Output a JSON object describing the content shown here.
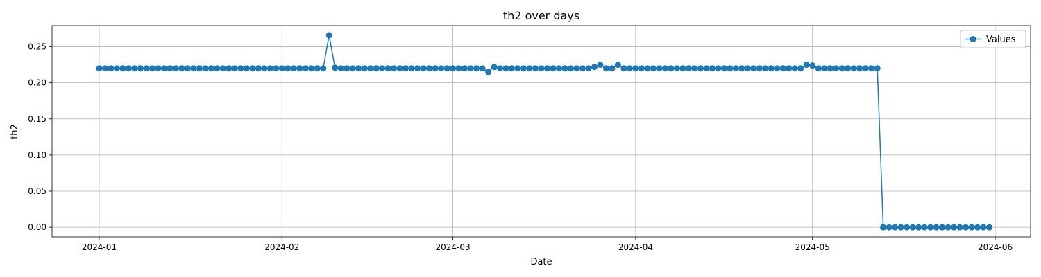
{
  "chart_data": {
    "type": "line",
    "title": "th2 over days",
    "xlabel": "Date",
    "ylabel": "th2",
    "x_start": "2024-01-01",
    "x_step_days": 1,
    "xlim": [
      "2023-12-24",
      "2024-06-07"
    ],
    "ylim": [
      -0.0133,
      0.2793
    ],
    "x_ticks": [
      "2024-01-01",
      "2024-02-01",
      "2024-03-01",
      "2024-04-01",
      "2024-05-01",
      "2024-06-01"
    ],
    "x_tick_labels": [
      "2024-01",
      "2024-02",
      "2024-03",
      "2024-04",
      "2024-05",
      "2024-06"
    ],
    "y_ticks": [
      0.0,
      0.05,
      0.1,
      0.15,
      0.2,
      0.25
    ],
    "y_tick_labels": [
      "0.00",
      "0.05",
      "0.10",
      "0.15",
      "0.20",
      "0.25"
    ],
    "grid": true,
    "legend_position": "top-right",
    "series": [
      {
        "name": "Values",
        "color": "#1f77b4",
        "marker": "circle",
        "values": [
          0.22,
          0.22,
          0.22,
          0.22,
          0.22,
          0.22,
          0.22,
          0.22,
          0.22,
          0.22,
          0.22,
          0.22,
          0.22,
          0.22,
          0.22,
          0.22,
          0.22,
          0.22,
          0.22,
          0.22,
          0.22,
          0.22,
          0.22,
          0.22,
          0.22,
          0.22,
          0.22,
          0.22,
          0.22,
          0.22,
          0.22,
          0.22,
          0.22,
          0.22,
          0.22,
          0.22,
          0.22,
          0.22,
          0.22,
          0.266,
          0.221,
          0.22,
          0.22,
          0.22,
          0.22,
          0.22,
          0.22,
          0.22,
          0.22,
          0.22,
          0.22,
          0.22,
          0.22,
          0.22,
          0.22,
          0.22,
          0.22,
          0.22,
          0.22,
          0.22,
          0.22,
          0.22,
          0.22,
          0.22,
          0.22,
          0.22,
          0.215,
          0.222,
          0.22,
          0.22,
          0.22,
          0.22,
          0.22,
          0.22,
          0.22,
          0.22,
          0.22,
          0.22,
          0.22,
          0.22,
          0.22,
          0.22,
          0.22,
          0.22,
          0.222,
          0.225,
          0.22,
          0.22,
          0.225,
          0.22,
          0.22,
          0.22,
          0.22,
          0.22,
          0.22,
          0.22,
          0.22,
          0.22,
          0.22,
          0.22,
          0.22,
          0.22,
          0.22,
          0.22,
          0.22,
          0.22,
          0.22,
          0.22,
          0.22,
          0.22,
          0.22,
          0.22,
          0.22,
          0.22,
          0.22,
          0.22,
          0.22,
          0.22,
          0.22,
          0.22,
          0.225,
          0.224,
          0.22,
          0.22,
          0.22,
          0.22,
          0.22,
          0.22,
          0.22,
          0.22,
          0.22,
          0.22,
          0.22,
          0.0,
          0.0,
          0.0,
          0.0,
          0.0,
          0.0,
          0.0,
          0.0,
          0.0,
          0.0,
          0.0,
          0.0,
          0.0,
          0.0,
          0.0,
          0.0,
          0.0,
          0.0,
          0.0
        ]
      }
    ]
  }
}
